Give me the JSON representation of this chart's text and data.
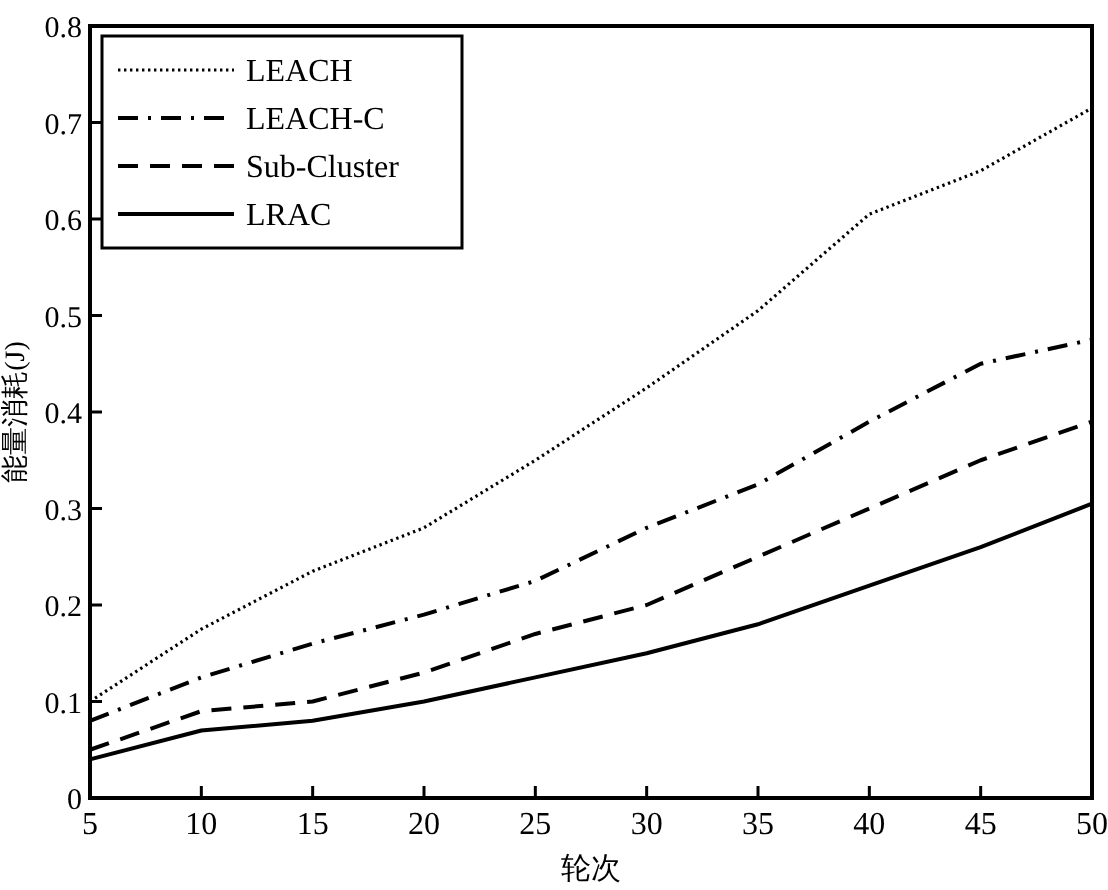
{
  "chart_data": {
    "type": "line",
    "xlabel": "轮次",
    "ylabel": "能量消耗(J)",
    "x": [
      5,
      10,
      15,
      20,
      25,
      30,
      35,
      40,
      45,
      50
    ],
    "series": [
      {
        "name": "LEACH",
        "color": "#000000",
        "line_style": "dotted",
        "values": [
          0.1,
          0.175,
          0.235,
          0.28,
          0.35,
          0.425,
          0.505,
          0.605,
          0.65,
          0.715
        ]
      },
      {
        "name": "LEACH-C",
        "color": "#000000",
        "line_style": "dashdot",
        "values": [
          0.08,
          0.125,
          0.16,
          0.19,
          0.225,
          0.28,
          0.325,
          0.39,
          0.45,
          0.475
        ]
      },
      {
        "name": "Sub-Cluster",
        "color": "#000000",
        "line_style": "dashed",
        "values": [
          0.05,
          0.09,
          0.1,
          0.13,
          0.17,
          0.2,
          0.25,
          0.3,
          0.35,
          0.39
        ]
      },
      {
        "name": "LRAC",
        "color": "#000000",
        "line_style": "solid",
        "values": [
          0.04,
          0.07,
          0.08,
          0.1,
          0.125,
          0.15,
          0.18,
          0.22,
          0.26,
          0.305
        ]
      }
    ],
    "xlim": [
      5,
      50
    ],
    "xticks": [
      5,
      10,
      15,
      20,
      25,
      30,
      35,
      40,
      45,
      50
    ],
    "ylim": [
      0,
      0.8
    ],
    "yticks": [
      0,
      0.1,
      0.2,
      0.3,
      0.4,
      0.5,
      0.6,
      0.7,
      0.8
    ],
    "grid": false,
    "legend": "top left"
  }
}
